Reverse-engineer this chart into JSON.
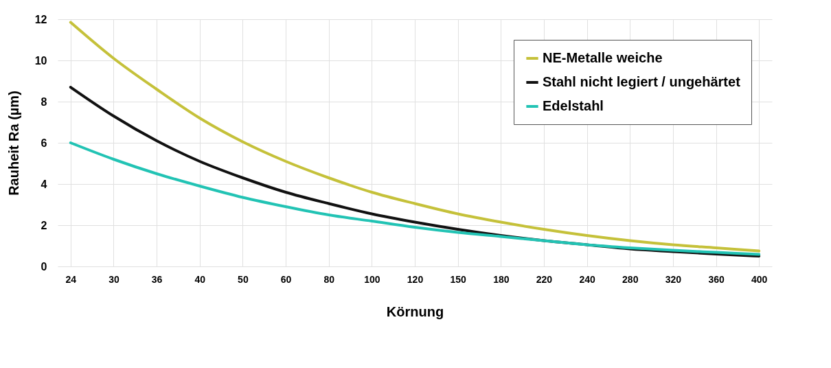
{
  "chart_data": {
    "type": "line",
    "xlabel": "Körnung",
    "ylabel": "Rauheit Ra (µm)",
    "categories": [
      "24",
      "30",
      "36",
      "40",
      "50",
      "60",
      "80",
      "100",
      "120",
      "150",
      "180",
      "220",
      "240",
      "280",
      "320",
      "360",
      "400"
    ],
    "series": [
      {
        "name": "NE-Metalle weiche",
        "color": "#c5c13a",
        "values": [
          11.85,
          10.1,
          8.6,
          7.2,
          6.05,
          5.1,
          4.3,
          3.6,
          3.05,
          2.55,
          2.15,
          1.8,
          1.5,
          1.25,
          1.05,
          0.9,
          0.75
        ]
      },
      {
        "name": "Stahl nicht legiert / ungehärtet",
        "color": "#111111",
        "values": [
          8.7,
          7.3,
          6.1,
          5.1,
          4.3,
          3.6,
          3.05,
          2.55,
          2.15,
          1.8,
          1.5,
          1.25,
          1.05,
          0.85,
          0.72,
          0.6,
          0.5
        ]
      },
      {
        "name": "Edelstahl",
        "color": "#22c3b4",
        "values": [
          6.0,
          5.2,
          4.5,
          3.9,
          3.35,
          2.9,
          2.5,
          2.2,
          1.9,
          1.65,
          1.45,
          1.25,
          1.05,
          0.9,
          0.78,
          0.68,
          0.58
        ]
      }
    ],
    "ylim": [
      0,
      12
    ],
    "yticks": [
      0,
      2,
      4,
      6,
      8,
      10,
      12
    ],
    "grid": true,
    "legend": "top right",
    "marker": "none",
    "line_style": "solid"
  }
}
